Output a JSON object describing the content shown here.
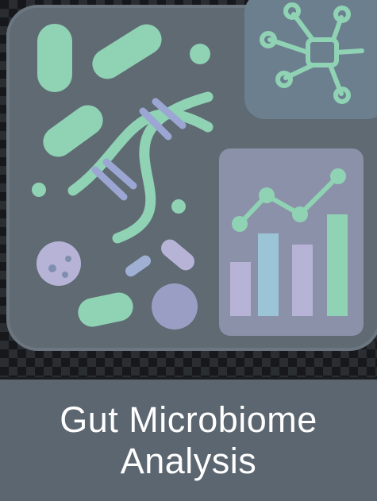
{
  "title": {
    "line1": "Gut Microbiome",
    "line2": "Analysis"
  },
  "colors": {
    "card": "#5f6a73",
    "green": "#8fd2b4",
    "blue": "#9bb7cf",
    "lavender": "#b7b3d6",
    "network_panel": "#6c7f8e",
    "chart_panel": "#8b91a8",
    "title_band": "#5c6670"
  },
  "icons": [
    "bacteria-icon",
    "dna-helix-icon",
    "network-icon",
    "bar-chart-icon"
  ]
}
